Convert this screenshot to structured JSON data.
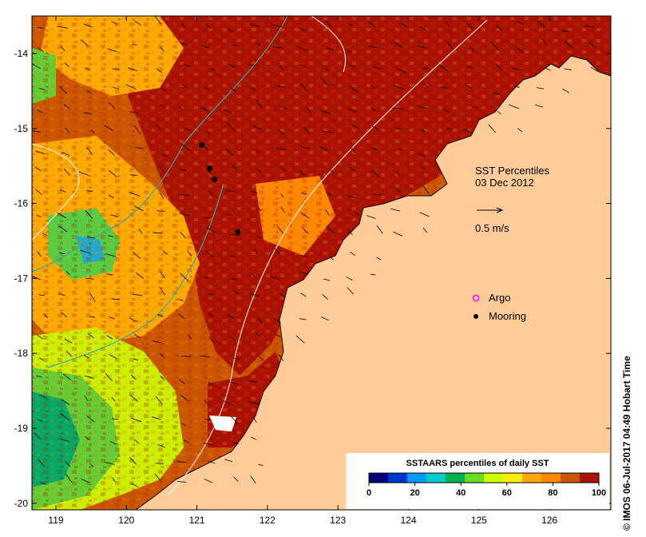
{
  "title": "SST Percentiles",
  "date": "03 Dec 2012",
  "vector_scale_label": "0.5 m/s",
  "legend": {
    "argo": "Argo",
    "mooring": "Mooring",
    "colors": {
      "argo": "#ff00ff",
      "mooring": "#000000"
    }
  },
  "colorbar": {
    "title": "SSTAARS percentiles of daily SST",
    "ticks": [
      "0",
      "20",
      "40",
      "60",
      "80",
      "100"
    ],
    "colors": [
      "#00007a",
      "#0033cc",
      "#0099ff",
      "#00cccc",
      "#00b050",
      "#66dd22",
      "#ccff00",
      "#ffee00",
      "#ffaa00",
      "#ff8800",
      "#cc5500",
      "#aa1100"
    ]
  },
  "axes": {
    "x_ticks": [
      "119",
      "120",
      "121",
      "122",
      "123",
      "124",
      "125",
      "126"
    ],
    "y_ticks": [
      "-14",
      "-15",
      "-16",
      "-17",
      "-18",
      "-19",
      "-20"
    ],
    "lon_range": [
      118.6,
      126.7
    ],
    "lat_range": [
      -20.15,
      -13.55
    ]
  },
  "moorings": [
    {
      "lon": 121.07,
      "lat": -15.22
    },
    {
      "lon": 121.18,
      "lat": -15.53
    },
    {
      "lon": 121.25,
      "lat": -15.68
    },
    {
      "lon": 121.58,
      "lat": -16.38
    }
  ],
  "land_color": "#ffcc99",
  "credit": "© IMOS 06-Jul-2017 04:49 Hobart Time"
}
